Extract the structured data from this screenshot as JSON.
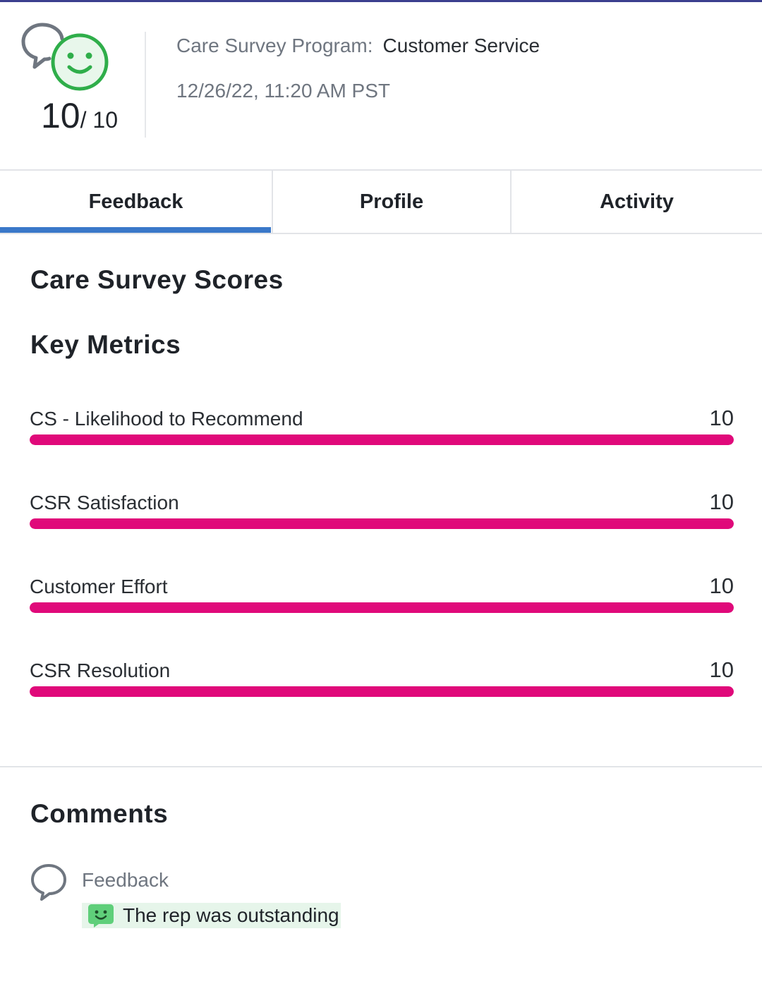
{
  "header": {
    "score": "10",
    "score_max": "10",
    "program_label": "Care Survey Program:",
    "program_value": "Customer Service",
    "datetime": "12/26/22, 11:20 AM PST"
  },
  "tabs": [
    {
      "label": "Feedback",
      "active": true
    },
    {
      "label": "Profile",
      "active": false
    },
    {
      "label": "Activity",
      "active": false
    }
  ],
  "scores": {
    "title": "Care Survey Scores",
    "subtitle": "Key Metrics",
    "metrics": [
      {
        "label": "CS - Likelihood to Recommend",
        "value": "10",
        "fraction": 1.0
      },
      {
        "label": "CSR Satisfaction",
        "value": "10",
        "fraction": 1.0
      },
      {
        "label": "Customer Effort",
        "value": "10",
        "fraction": 1.0
      },
      {
        "label": "CSR Resolution",
        "value": "10",
        "fraction": 1.0
      }
    ]
  },
  "comments": {
    "title": "Comments",
    "label": "Feedback",
    "text": "The rep was outstanding"
  },
  "colors": {
    "accent": "#3a78c9",
    "metric_bar": "#e0097a",
    "smiley": "#2fae4a",
    "comment_bg": "#e6f5ea"
  },
  "icons": {
    "logo": "chat-bubble-smiley-icon",
    "comment": "chat-bubble-icon",
    "comment_sentiment": "smiley-icon"
  }
}
